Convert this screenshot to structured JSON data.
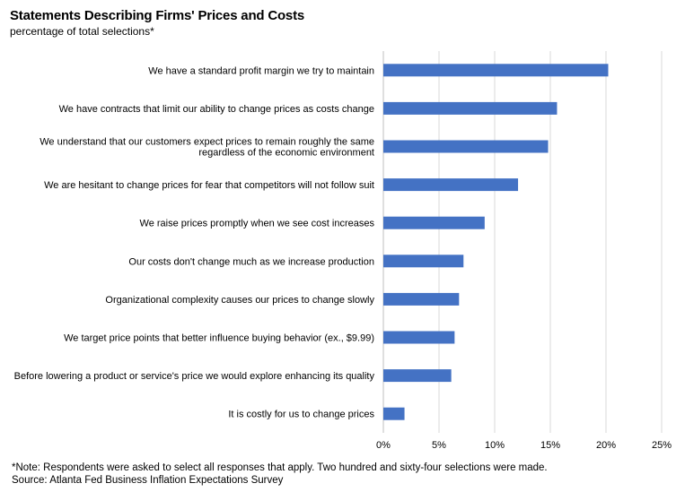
{
  "chart_data": {
    "type": "bar",
    "orientation": "horizontal",
    "title": "Statements Describing Firms' Prices and Costs",
    "subtitle": "percentage of total selections*",
    "categories": [
      "We have a standard profit margin we try to maintain",
      "We have contracts that limit our ability to change prices as costs change",
      "We understand that our customers expect prices to remain roughly the same regardless of the economic environment",
      "We are hesitant to change prices for fear that competitors will not follow suit",
      "We raise prices promptly when we see cost increases",
      "Our costs don't change much as we increase production",
      "Organizational complexity causes our prices to change slowly",
      "We target price points that better influence buying behavior (ex., $9.99)",
      "Before lowering a product or service's price we would explore enhancing its quality",
      "It is costly for us to change prices"
    ],
    "category_lines": [
      [
        "We have a standard profit margin we try to maintain"
      ],
      [
        "We have contracts that limit our ability to change prices as costs change"
      ],
      [
        "We understand that our customers expect prices to remain roughly the same",
        "regardless of the economic environment"
      ],
      [
        "We are hesitant to change prices for fear that competitors will not follow suit"
      ],
      [
        "We raise prices promptly when we see cost increases"
      ],
      [
        "Our costs don't change much as we increase production"
      ],
      [
        "Organizational complexity causes our prices to change slowly"
      ],
      [
        "We target price points that better influence buying behavior (ex., $9.99)"
      ],
      [
        "Before lowering a product or service's price we would explore enhancing its quality"
      ],
      [
        "It is costly for us to change prices"
      ]
    ],
    "values": [
      20.2,
      15.6,
      14.8,
      12.1,
      9.1,
      7.2,
      6.8,
      6.4,
      6.1,
      1.9
    ],
    "xlim": [
      0,
      25
    ],
    "xticks": [
      0,
      5,
      10,
      15,
      20,
      25
    ],
    "xtick_labels": [
      "0%",
      "5%",
      "10%",
      "15%",
      "20%",
      "25%"
    ],
    "xlabel": "",
    "ylabel": "",
    "grid": "vertical",
    "legend": "none",
    "bar_color": "#4472C4",
    "grid_color": "#D9D9D9"
  },
  "notes": {
    "note": "*Note: Respondents were asked to select all responses that apply. Two hundred and sixty-four selections were made.",
    "source": " Source: Atlanta Fed Business Inflation Expectations Survey"
  }
}
